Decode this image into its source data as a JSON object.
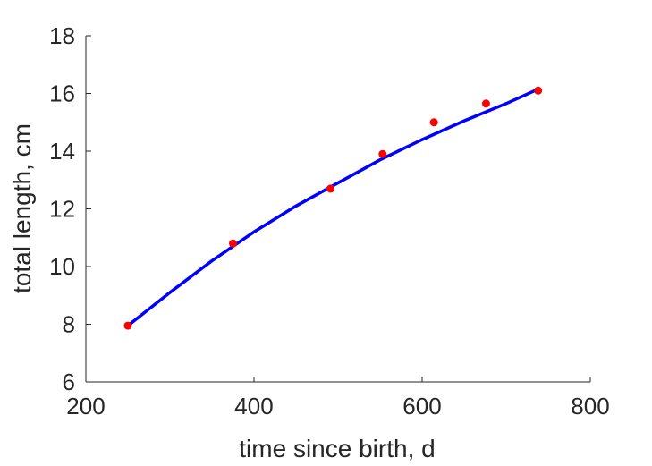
{
  "chart_data": {
    "type": "line",
    "xlabel": "time since birth, d",
    "ylabel": "total length, cm",
    "xlim": [
      200,
      800
    ],
    "ylim": [
      6,
      18
    ],
    "x_ticks": [
      200,
      400,
      600,
      800
    ],
    "y_ticks": [
      6,
      8,
      10,
      12,
      14,
      16,
      18
    ],
    "grid": false,
    "series": [
      {
        "kind": "scatter",
        "color": "#ff0000",
        "x": [
          250,
          375,
          491,
          553,
          614,
          676,
          738
        ],
        "y": [
          7.95,
          10.8,
          12.7,
          13.9,
          15.0,
          15.65,
          16.1
        ]
      },
      {
        "kind": "line",
        "color": "#0000ff",
        "x": [
          250,
          300,
          350,
          400,
          450,
          500,
          550,
          600,
          650,
          700,
          738
        ],
        "y": [
          7.95,
          9.1,
          10.2,
          11.2,
          12.1,
          12.9,
          13.7,
          14.4,
          15.05,
          15.65,
          16.15
        ]
      }
    ]
  }
}
